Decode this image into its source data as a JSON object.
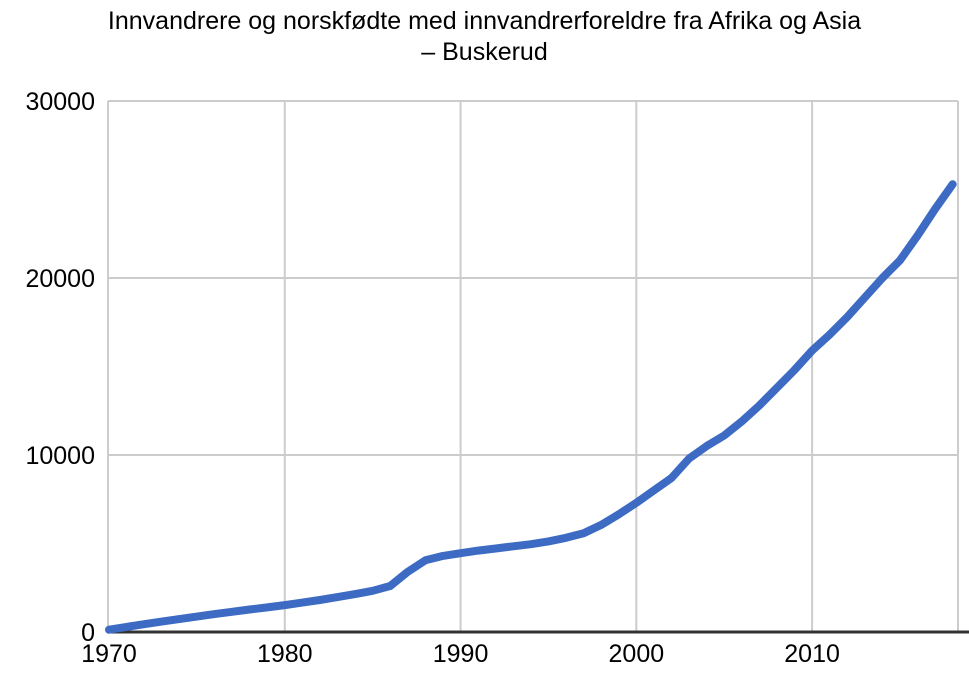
{
  "chart_data": {
    "type": "line",
    "title": "Innvandrere og norskfødte med innvandrerforeldre fra Afrika og Asia – Buskerud",
    "title_lines": [
      "Innvandrere og norskfødte med innvandrerforeldre fra Afrika og Asia",
      "– Buskerud"
    ],
    "xlabel": "",
    "ylabel": "",
    "x": [
      1970,
      1971,
      1972,
      1973,
      1974,
      1975,
      1976,
      1977,
      1978,
      1979,
      1980,
      1981,
      1982,
      1983,
      1984,
      1985,
      1986,
      1987,
      1988,
      1989,
      1990,
      1991,
      1992,
      1993,
      1994,
      1995,
      1996,
      1997,
      1998,
      1999,
      2000,
      2001,
      2002,
      2003,
      2004,
      2005,
      2006,
      2007,
      2008,
      2009,
      2010,
      2011,
      2012,
      2013,
      2014,
      2015,
      2016,
      2017,
      2018
    ],
    "series": [
      {
        "name": "Innvandrere og norskfødte med innvandrerforeldre fra Afrika og Asia – Buskerud",
        "values": [
          130,
          290,
          440,
          590,
          730,
          870,
          1010,
          1140,
          1270,
          1390,
          1520,
          1660,
          1810,
          1970,
          2140,
          2330,
          2600,
          3400,
          4050,
          4300,
          4450,
          4600,
          4720,
          4840,
          4960,
          5120,
          5320,
          5580,
          6050,
          6650,
          7300,
          8000,
          8700,
          9800,
          10500,
          11100,
          11900,
          12800,
          13800,
          14800,
          15900,
          16800,
          17800,
          18900,
          20000,
          21000,
          22400,
          23900,
          25300
        ]
      }
    ],
    "x_ticks": [
      "1970",
      "1980",
      "1990",
      "2000",
      "2010"
    ],
    "x_tick_values": [
      1970,
      1980,
      1990,
      2000,
      2010
    ],
    "y_ticks": [
      "0",
      "10000",
      "20000",
      "30000"
    ],
    "y_tick_values": [
      0,
      10000,
      20000,
      30000
    ],
    "xlim": [
      1970,
      2018.3
    ],
    "ylim": [
      0,
      30000
    ],
    "grid": true,
    "legend_position": "none",
    "line_color": "#3d6bc4",
    "grid_color": "#cccccc",
    "axis_color": "#333333",
    "text_color": "#000000",
    "background_color": "#ffffff"
  }
}
